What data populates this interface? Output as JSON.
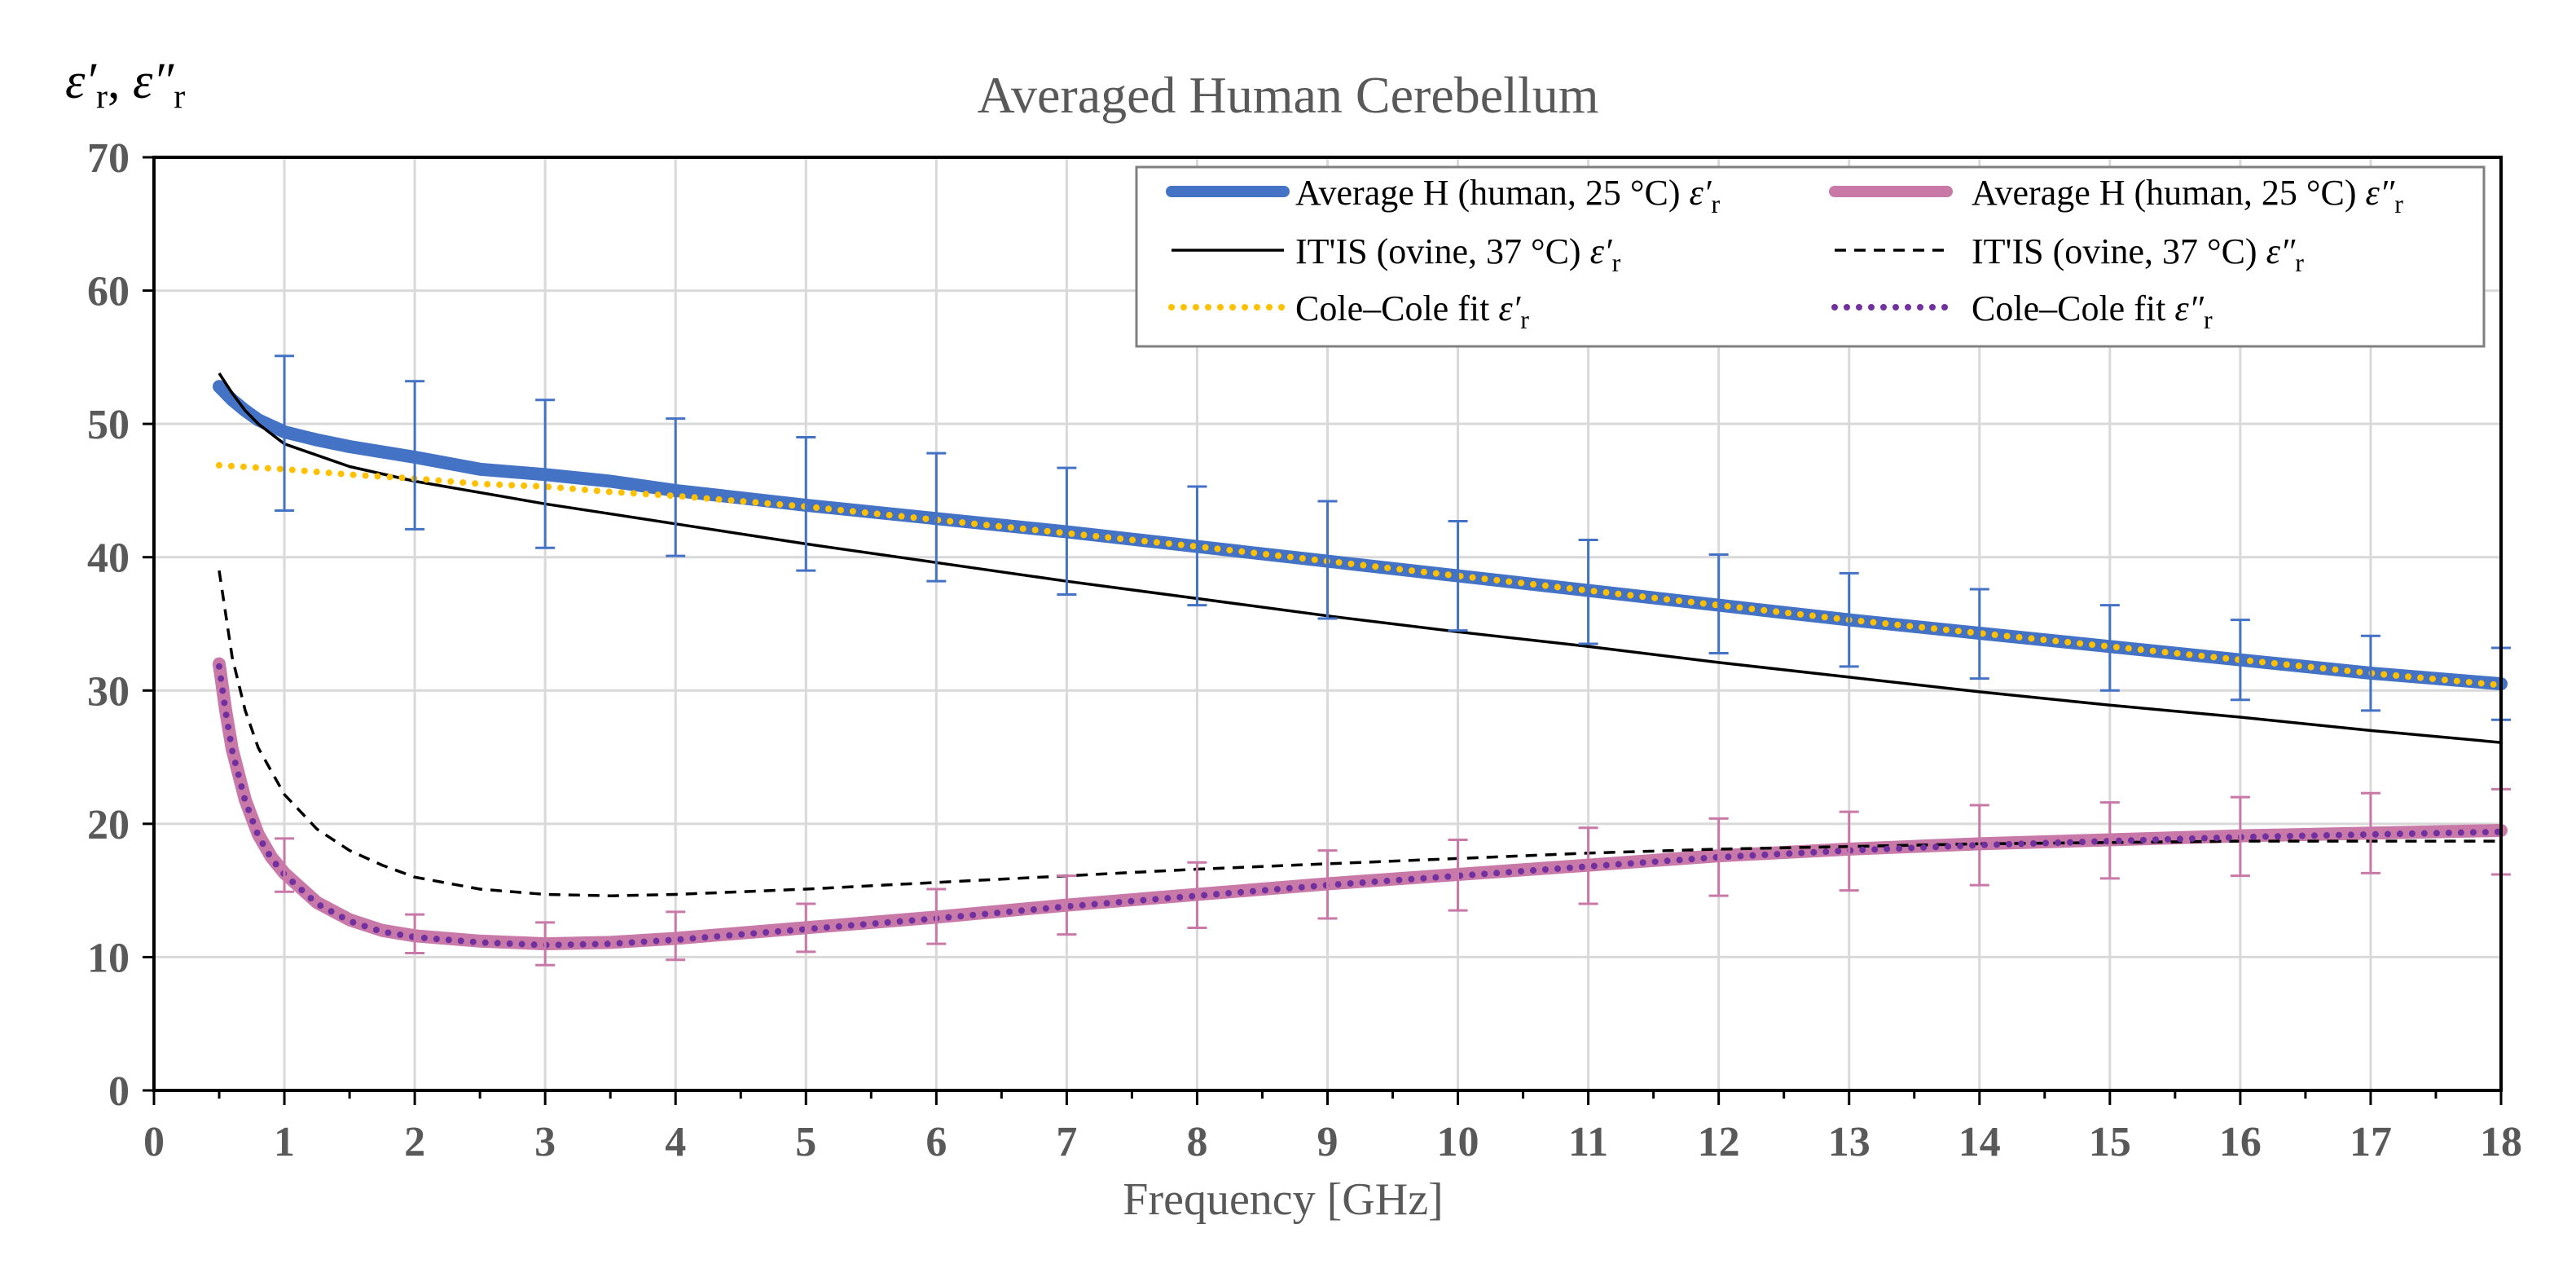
{
  "chart_data": {
    "type": "line",
    "title": "Averaged Human Cerebellum",
    "xlabel": "Frequency [GHz]",
    "ylabel": "ε′r, ε″r",
    "ylabel_parts": {
      "first": "ε′",
      "sub": "r",
      "sep": ", ",
      "second": "ε″",
      "sub2": "r"
    },
    "xlim": [
      0,
      18
    ],
    "ylim": [
      0,
      70
    ],
    "x_ticks": [
      0,
      1,
      2,
      3,
      4,
      5,
      6,
      7,
      8,
      9,
      10,
      11,
      12,
      13,
      14,
      15,
      16,
      17,
      18
    ],
    "y_ticks": [
      0,
      10,
      20,
      30,
      40,
      50,
      60,
      70
    ],
    "grid": true,
    "legend_position": "top-right",
    "series": [
      {
        "name": "Average H (human, 25 °C) ε′r",
        "legend_main": "Average H (human, 25 °C) ",
        "legend_sym": "ε′",
        "legend_sub": "r",
        "color": "#4472C4",
        "style": "thick",
        "x": [
          0.5,
          0.6,
          0.7,
          0.8,
          1,
          1.25,
          1.5,
          1.75,
          2,
          2.5,
          3,
          3.5,
          4,
          5,
          6,
          7,
          8,
          9,
          10,
          11,
          12,
          13,
          14,
          15,
          16,
          17,
          18
        ],
        "y": [
          52.8,
          51.8,
          51.0,
          50.3,
          49.4,
          48.8,
          48.3,
          47.9,
          47.5,
          46.6,
          46.2,
          45.7,
          45.0,
          43.9,
          42.9,
          41.9,
          40.8,
          39.7,
          38.6,
          37.5,
          36.4,
          35.3,
          34.3,
          33.3,
          32.3,
          31.3,
          30.5
        ]
      },
      {
        "name": "Average H (human, 25 °C) ε″r",
        "legend_main": "Average H (human, 25 °C) ",
        "legend_sym": "ε″",
        "legend_sub": "r",
        "color": "#C879A7",
        "style": "thick",
        "x": [
          0.5,
          0.55,
          0.6,
          0.7,
          0.8,
          0.9,
          1,
          1.25,
          1.5,
          1.75,
          2,
          2.5,
          3,
          3.5,
          4,
          5,
          6,
          7,
          8,
          9,
          10,
          11,
          12,
          13,
          14,
          15,
          16,
          17,
          18
        ],
        "y": [
          32.0,
          28.5,
          25.6,
          21.8,
          19.2,
          17.5,
          16.3,
          14.1,
          12.8,
          12.0,
          11.6,
          11.2,
          11.0,
          11.1,
          11.4,
          12.2,
          13.0,
          13.9,
          14.7,
          15.5,
          16.2,
          16.9,
          17.6,
          18.1,
          18.5,
          18.8,
          19.1,
          19.3,
          19.5
        ]
      },
      {
        "name": "IT'IS (ovine, 37 °C) ε′r",
        "legend_main": "IT'IS (ovine, 37 °C) ",
        "legend_sym": "ε′",
        "legend_sub": "r",
        "color": "#000000",
        "style": "solid",
        "x": [
          0.5,
          0.6,
          0.7,
          0.8,
          1,
          1.5,
          2,
          3,
          4,
          5,
          6,
          7,
          8,
          9,
          10,
          11,
          12,
          13,
          14,
          15,
          16,
          17,
          18
        ],
        "y": [
          53.8,
          52.3,
          51.0,
          50.0,
          48.5,
          46.8,
          45.7,
          44.0,
          42.5,
          41.0,
          39.6,
          38.2,
          36.9,
          35.6,
          34.4,
          33.3,
          32.1,
          31.0,
          29.9,
          28.9,
          28.0,
          27.0,
          26.1
        ]
      },
      {
        "name": "IT'IS (ovine, 37 °C) ε″r",
        "legend_main": "IT'IS (ovine, 37 °C) ",
        "legend_sym": "ε″",
        "legend_sub": "r",
        "color": "#000000",
        "style": "dashed",
        "x": [
          0.5,
          0.6,
          0.7,
          0.8,
          1,
          1.25,
          1.5,
          1.75,
          2,
          2.5,
          3,
          3.5,
          4,
          5,
          6,
          7,
          8,
          9,
          10,
          11,
          12,
          13,
          14,
          15,
          16,
          17,
          18
        ],
        "y": [
          39.0,
          32.5,
          28.5,
          25.7,
          22.2,
          19.6,
          18.0,
          16.9,
          16.0,
          15.1,
          14.7,
          14.6,
          14.7,
          15.1,
          15.6,
          16.1,
          16.6,
          17.0,
          17.4,
          17.8,
          18.1,
          18.3,
          18.5,
          18.6,
          18.7,
          18.7,
          18.7
        ]
      },
      {
        "name": "Cole–Cole fit ε′r",
        "legend_main": "Cole–Cole fit ",
        "legend_sym": "ε′",
        "legend_sub": "r",
        "color": "#FFC000",
        "style": "dotted",
        "x": [
          0.5,
          1,
          1.5,
          2,
          2.5,
          3,
          3.5,
          4,
          5,
          6,
          7,
          8,
          9,
          10,
          11,
          12,
          13,
          14,
          15,
          16,
          17,
          18
        ],
        "y": [
          46.9,
          46.6,
          46.2,
          45.9,
          45.5,
          45.3,
          44.9,
          44.6,
          43.8,
          42.8,
          41.8,
          40.8,
          39.7,
          38.6,
          37.5,
          36.4,
          35.3,
          34.3,
          33.3,
          32.3,
          31.3,
          30.4
        ]
      },
      {
        "name": "Cole–Cole fit ε″r",
        "legend_main": "Cole–Cole fit ",
        "legend_sym": "ε″",
        "legend_sub": "r",
        "color": "#7030A0",
        "style": "dotted",
        "x": [
          0.5,
          0.55,
          0.6,
          0.7,
          0.8,
          0.9,
          1,
          1.25,
          1.5,
          1.75,
          2,
          2.5,
          3,
          3.5,
          4,
          5,
          6,
          7,
          8,
          9,
          10,
          11,
          12,
          13,
          14,
          15,
          16,
          17,
          18
        ],
        "y": [
          31.8,
          28.4,
          25.5,
          21.7,
          19.1,
          17.4,
          16.2,
          14.0,
          12.7,
          11.9,
          11.5,
          11.1,
          10.9,
          11.0,
          11.3,
          12.1,
          12.9,
          13.8,
          14.6,
          15.4,
          16.1,
          16.8,
          17.5,
          18.0,
          18.4,
          18.7,
          19.0,
          19.2,
          19.4
        ]
      }
    ],
    "error_bars": [
      {
        "series": "Average H (human, 25 °C) ε′r",
        "color": "#4472C4",
        "x": [
          1,
          2,
          3,
          4,
          5,
          6,
          7,
          8,
          9,
          10,
          11,
          12,
          13,
          14,
          15,
          16,
          17,
          18
        ],
        "y": [
          49.3,
          47.6,
          46.2,
          45.2,
          44.0,
          43.0,
          42.0,
          40.8,
          39.8,
          38.6,
          37.5,
          36.5,
          35.3,
          34.3,
          33.2,
          32.3,
          31.4,
          30.5
        ],
        "low": [
          43.5,
          42.1,
          40.7,
          40.1,
          39.0,
          38.2,
          37.2,
          36.4,
          35.4,
          34.5,
          33.5,
          32.8,
          31.8,
          30.9,
          30.0,
          29.3,
          28.5,
          27.8
        ],
        "high": [
          55.1,
          53.2,
          51.8,
          50.4,
          49.0,
          47.8,
          46.7,
          45.3,
          44.2,
          42.7,
          41.3,
          40.2,
          38.8,
          37.6,
          36.4,
          35.3,
          34.1,
          33.2
        ]
      },
      {
        "series": "Average H (human, 25 °C) ε″r",
        "color": "#C879A7",
        "x": [
          1,
          2,
          3,
          4,
          5,
          6,
          7,
          8,
          9,
          10,
          11,
          12,
          13,
          14,
          15,
          16,
          17,
          18
        ],
        "y": [
          16.4,
          11.8,
          11.0,
          11.6,
          12.2,
          13.1,
          13.9,
          14.7,
          15.4,
          16.2,
          16.9,
          17.5,
          18.0,
          18.4,
          18.8,
          19.1,
          19.3,
          19.5
        ],
        "low": [
          14.9,
          10.3,
          9.4,
          9.8,
          10.4,
          11.0,
          11.7,
          12.2,
          12.9,
          13.5,
          14.0,
          14.6,
          15.0,
          15.4,
          15.9,
          16.1,
          16.3,
          16.2
        ],
        "high": [
          18.9,
          13.2,
          12.6,
          13.4,
          14.0,
          15.1,
          16.1,
          17.1,
          18.0,
          18.8,
          19.7,
          20.4,
          20.9,
          21.4,
          21.6,
          22.0,
          22.3,
          22.6
        ]
      }
    ],
    "legend_order": [
      0,
      1,
      2,
      3,
      4,
      5
    ]
  }
}
